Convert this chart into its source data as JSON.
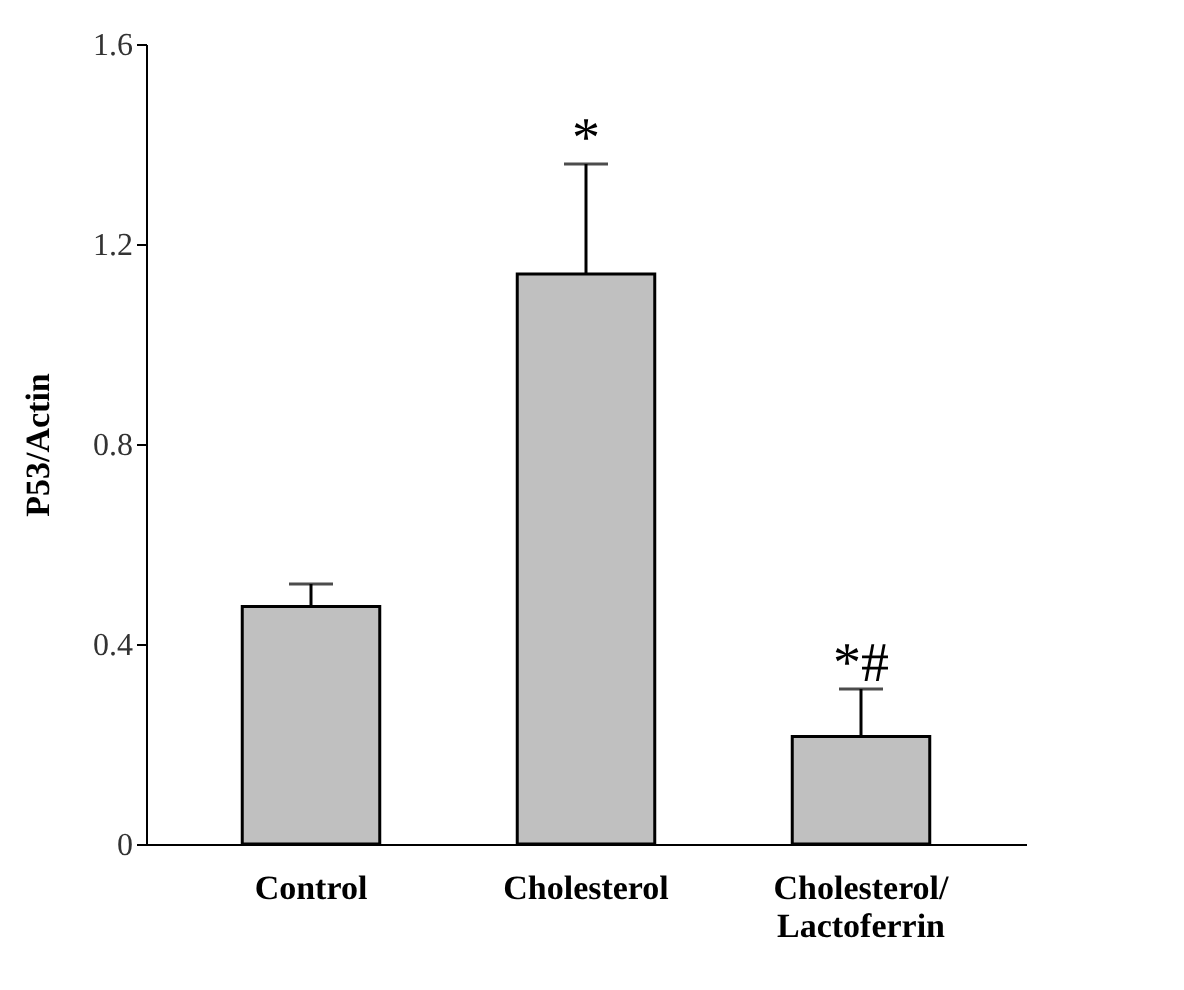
{
  "chart_data": {
    "type": "bar",
    "ylabel": "P53/Actin",
    "categories": [
      "Control",
      "Cholesterol",
      "Cholesterol/\nLactoferrin"
    ],
    "values": [
      0.475,
      1.14,
      0.215
    ],
    "errors": [
      [
        0.475,
        0.52
      ],
      [
        1.14,
        1.36
      ],
      [
        0.215,
        0.31
      ]
    ],
    "color": "#c0c0c0",
    "ylim": [
      0,
      1.6
    ],
    "yticks": [
      0,
      0.4,
      0.8,
      1.2,
      1.6
    ],
    "grid": false,
    "annotations": [
      "*",
      "*#"
    ]
  }
}
